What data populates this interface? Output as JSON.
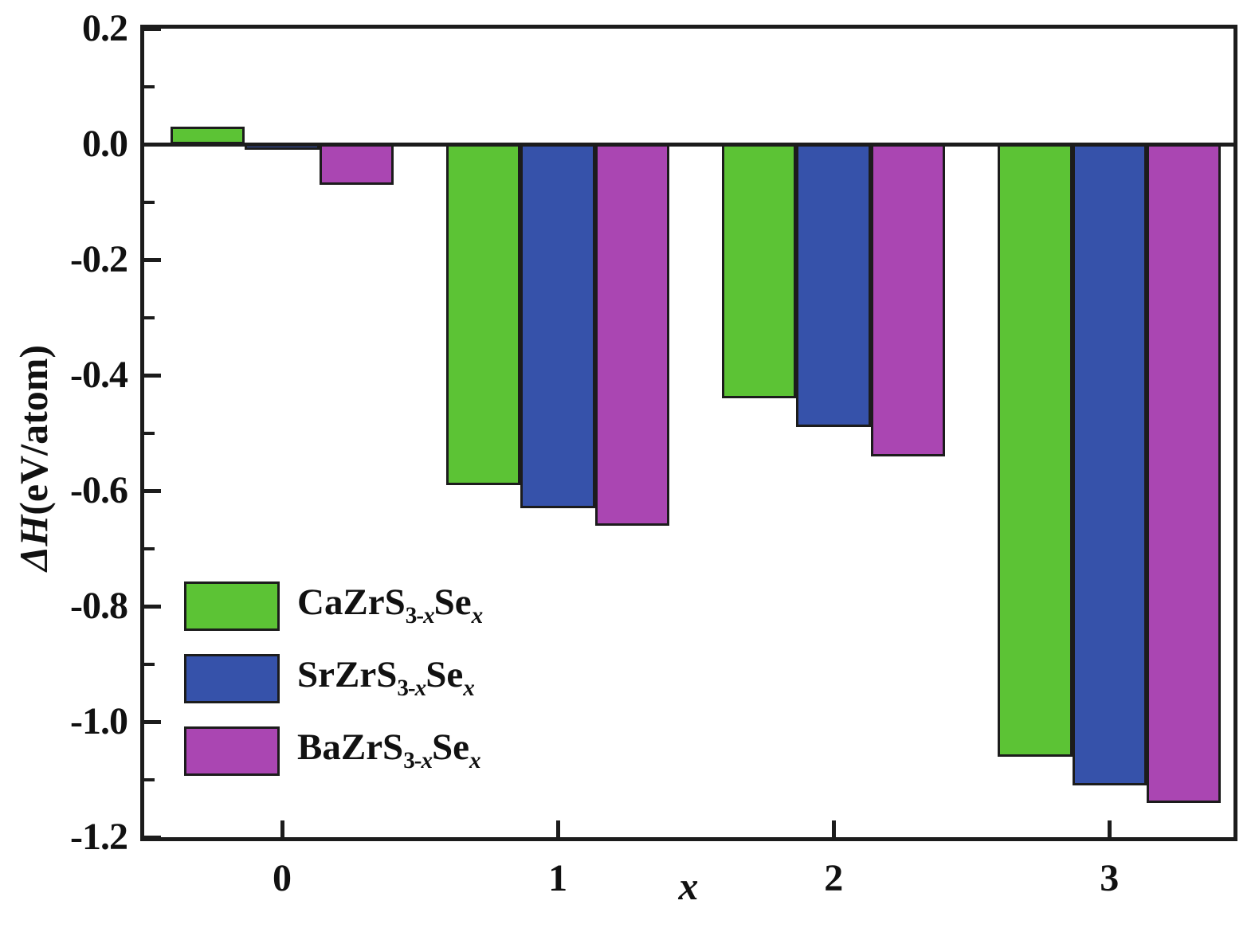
{
  "chart_data": {
    "type": "bar",
    "title": "",
    "xlabel": "x",
    "ylabel": "ΔH(eV/atom)",
    "categories": [
      0,
      1,
      2,
      3
    ],
    "series": [
      {
        "name": "CaZrS3-xSex",
        "color": "#5cc335",
        "values": [
          0.03,
          -0.59,
          -0.44,
          -1.06
        ]
      },
      {
        "name": "SrZrS3-xSex",
        "color": "#3652aa",
        "values": [
          -0.01,
          -0.63,
          -0.49,
          -1.11
        ]
      },
      {
        "name": "BaZrS3-xSex",
        "color": "#aa46b2",
        "values": [
          -0.07,
          -0.66,
          -0.54,
          -1.14
        ]
      }
    ],
    "ylim": [
      -1.2,
      0.2
    ],
    "xlim": [
      -0.5,
      3.45
    ],
    "bar_width": 0.27,
    "grid": false,
    "legend_position": "lower-left"
  },
  "y_axis": {
    "title_italic": "ΔH",
    "title_rest": "(eV/atom)",
    "major_ticks": [
      0.2,
      0.0,
      -0.2,
      -0.4,
      -0.6,
      -0.8,
      -1.0,
      -1.2
    ],
    "major_tick_labels": [
      "0.2",
      "0.0",
      "-0.2",
      "-0.4",
      "-0.6",
      "-0.8",
      "-1.0",
      "-1.2"
    ],
    "minor_ticks": [
      0.1,
      -0.1,
      -0.3,
      -0.5,
      -0.7,
      -0.9,
      -1.1
    ]
  },
  "x_axis": {
    "title": "x",
    "ticks": [
      0,
      1,
      2,
      3
    ],
    "tick_labels": [
      "0",
      "1",
      "2",
      "3"
    ]
  },
  "legend": {
    "entries": [
      {
        "pre": "CaZrS",
        "sub_base": "3-",
        "sub_var": "x",
        "mid": "Se",
        "sub_var2": "x"
      },
      {
        "pre": "SrZrS",
        "sub_base": "3-",
        "sub_var": "x",
        "mid": "Se",
        "sub_var2": "x"
      },
      {
        "pre": "BaZrS",
        "sub_base": "3-",
        "sub_var": "x",
        "mid": "Se",
        "sub_var2": "x"
      }
    ]
  },
  "colors": {
    "axis": "#1c1c1c",
    "background": "#ffffff"
  }
}
